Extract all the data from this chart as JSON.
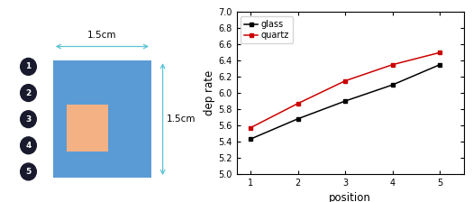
{
  "glass_x": [
    1,
    2,
    3,
    4,
    5
  ],
  "glass_y": [
    5.43,
    5.68,
    5.9,
    6.1,
    6.35
  ],
  "quartz_x": [
    1,
    2,
    3,
    4,
    5
  ],
  "quartz_y": [
    5.57,
    5.87,
    6.15,
    6.35,
    6.5
  ],
  "glass_color": "#000000",
  "quartz_color": "#cc0000",
  "ylim": [
    5.0,
    7.0
  ],
  "xlim": [
    0.7,
    5.5
  ],
  "yticks": [
    5.0,
    5.2,
    5.4,
    5.6,
    5.8,
    6.0,
    6.2,
    6.4,
    6.6,
    6.8,
    7.0
  ],
  "xticks": [
    1,
    2,
    3,
    4,
    5
  ],
  "xlabel": "position",
  "ylabel": "dep rate",
  "diagram_blue": "#5b9bd5",
  "diagram_orange": "#f4b183",
  "arrow_color": "#5bc4d5",
  "dim_label_h": "1.5cm",
  "dim_label_v": "1.5cm",
  "numbered_labels": [
    "1",
    "2",
    "3",
    "4",
    "5"
  ],
  "circle_color": "#1a1a2e"
}
